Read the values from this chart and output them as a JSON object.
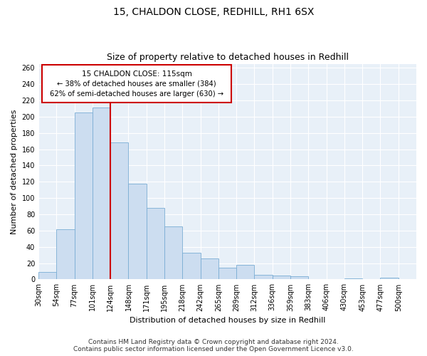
{
  "title": "15, CHALDON CLOSE, REDHILL, RH1 6SX",
  "subtitle": "Size of property relative to detached houses in Redhill",
  "xlabel": "Distribution of detached houses by size in Redhill",
  "ylabel": "Number of detached properties",
  "bar_labels": [
    "30sqm",
    "54sqm",
    "77sqm",
    "101sqm",
    "124sqm",
    "148sqm",
    "171sqm",
    "195sqm",
    "218sqm",
    "242sqm",
    "265sqm",
    "289sqm",
    "312sqm",
    "336sqm",
    "359sqm",
    "383sqm",
    "406sqm",
    "430sqm",
    "453sqm",
    "477sqm",
    "500sqm"
  ],
  "bar_values": [
    9,
    62,
    205,
    211,
    168,
    118,
    88,
    65,
    33,
    26,
    14,
    18,
    6,
    5,
    4,
    0,
    0,
    1,
    0,
    2,
    0
  ],
  "bar_color": "#ccddf0",
  "bar_edge_color": "#7aadd4",
  "vline_color": "#cc0000",
  "annotation_line1": "15 CHALDON CLOSE: 115sqm",
  "annotation_line2": "← 38% of detached houses are smaller (384)",
  "annotation_line3": "62% of semi-detached houses are larger (630) →",
  "ylim": [
    0,
    265
  ],
  "yticks": [
    0,
    20,
    40,
    60,
    80,
    100,
    120,
    140,
    160,
    180,
    200,
    220,
    240,
    260
  ],
  "footer1": "Contains HM Land Registry data © Crown copyright and database right 2024.",
  "footer2": "Contains public sector information licensed under the Open Government Licence v3.0.",
  "bg_color": "#e8f0f8",
  "grid_color": "#ffffff",
  "title_fontsize": 10,
  "subtitle_fontsize": 9,
  "axis_label_fontsize": 8,
  "tick_fontsize": 7,
  "footer_fontsize": 6.5,
  "annotation_fontsize": 7.5
}
